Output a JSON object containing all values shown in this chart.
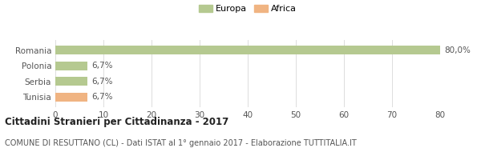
{
  "categories": [
    "Romania",
    "Polonia",
    "Serbia",
    "Tunisia"
  ],
  "values": [
    80.0,
    6.7,
    6.7,
    6.7
  ],
  "bar_colors": [
    "#b5c990",
    "#b5c990",
    "#b5c990",
    "#f0b482"
  ],
  "value_labels": [
    "80,0%",
    "6,7%",
    "6,7%",
    "6,7%"
  ],
  "xlim": [
    0,
    80
  ],
  "xticks": [
    0,
    10,
    20,
    30,
    40,
    50,
    60,
    70,
    80
  ],
  "legend_entries": [
    {
      "label": "Europa",
      "color": "#b5c990"
    },
    {
      "label": "Africa",
      "color": "#f0b482"
    }
  ],
  "title": "Cittadini Stranieri per Cittadinanza - 2017",
  "subtitle": "COMUNE DI RESUTTANO (CL) - Dati ISTAT al 1° gennaio 2017 - Elaborazione TUTTITALIA.IT",
  "background_color": "#ffffff",
  "bar_height": 0.55,
  "title_fontsize": 8.5,
  "subtitle_fontsize": 7.0,
  "tick_label_fontsize": 7.5,
  "value_label_fontsize": 7.5,
  "legend_fontsize": 8.0
}
